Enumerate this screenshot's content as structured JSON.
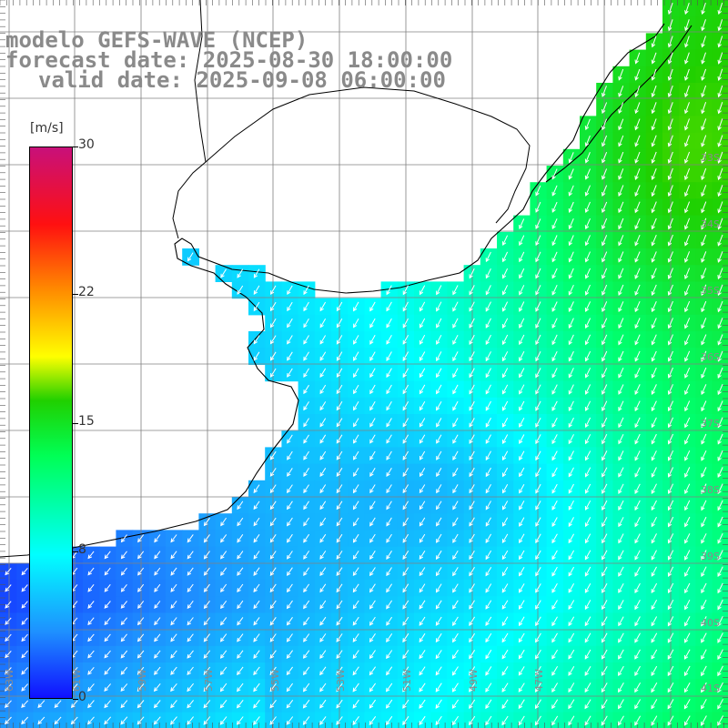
{
  "title": {
    "line1": "modelo GEFS-WAVE (NCEP)",
    "line2": "forecast date: 2025-08-30 18:00:00",
    "line3": "valid date: 2025-09-08 06:00:00"
  },
  "colorbar": {
    "unit": "[m/s]",
    "ticks": [
      {
        "value": 30,
        "label": "30"
      },
      {
        "value": 22,
        "label": "22"
      },
      {
        "value": 15,
        "label": "15"
      },
      {
        "value": 8,
        "label": "8"
      },
      {
        "value": 0,
        "label": "0"
      }
    ],
    "colors": [
      "#1010ff",
      "#1e90ff",
      "#00ffff",
      "#00ff55",
      "#20d000",
      "#ffff00",
      "#ff8c00",
      "#ff1010",
      "#c8107a"
    ]
  },
  "map": {
    "lon_labels": [
      "63W",
      "61W",
      "59W",
      "57W",
      "55W",
      "53W",
      "51W",
      "49W",
      "47W"
    ],
    "lat_labels": [
      "33S",
      "34S",
      "35S",
      "36S",
      "37S",
      "38S",
      "39S",
      "40S",
      "41S"
    ],
    "wind_direction": "from north-east",
    "colors": {
      "land": "#ffffff",
      "coast": "#000000",
      "grid": "#808080",
      "vector": "#ffffff",
      "label": "#8a8a8a"
    }
  }
}
